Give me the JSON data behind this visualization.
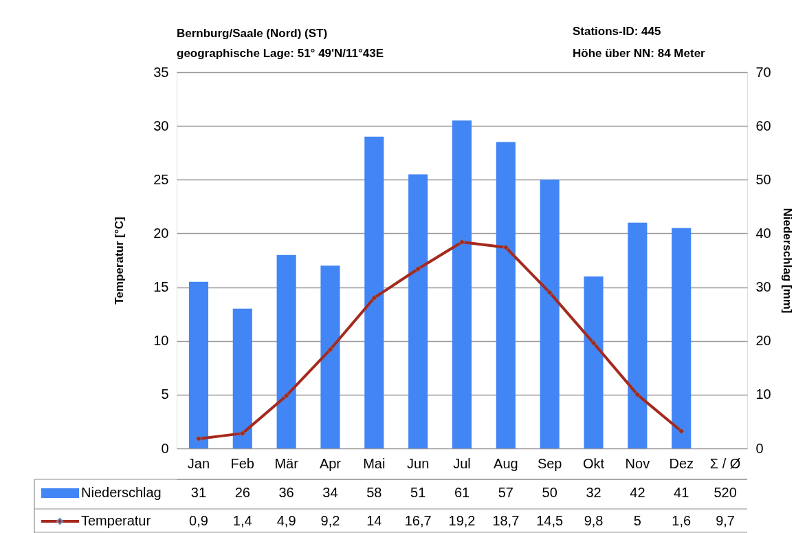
{
  "chart_data": {
    "type": "bar",
    "title": "Bernburg/Saale (Nord) (ST)",
    "subtitle": "geographische Lage: 51° 49'N/11°43E",
    "annotations": [
      "Stations-ID: 445",
      "Höhe über NN: 84 Meter"
    ],
    "ylabel": "Temperatur [°C]",
    "y2label": "Niederschlag [mm]",
    "categories": [
      "Jan",
      "Feb",
      "Mär",
      "Apr",
      "Mai",
      "Jun",
      "Jul",
      "Aug",
      "Sep",
      "Okt",
      "Nov",
      "Dez",
      "Σ / Ø"
    ],
    "series": [
      {
        "name": "Niederschlag",
        "axis": "y2",
        "color": "#4285f4",
        "values": [
          31,
          26,
          36,
          34,
          58,
          51,
          61,
          57,
          50,
          32,
          42,
          41,
          null
        ],
        "value_labels": [
          "31",
          "26",
          "36",
          "34",
          "58",
          "51",
          "61",
          "57",
          "50",
          "32",
          "42",
          "41",
          "520"
        ]
      },
      {
        "name": "Temperatur",
        "type": "line",
        "color": "#a52a1e",
        "values": [
          0.9,
          1.4,
          4.9,
          9.2,
          14,
          16.7,
          19.2,
          18.7,
          14.5,
          9.8,
          5,
          1.6,
          null
        ],
        "value_labels": [
          "0,9",
          "1,4",
          "4,9",
          "9,2",
          "14",
          "16,7",
          "19,2",
          "18,7",
          "14,5",
          "9,8",
          "5",
          "1,6",
          "9,7"
        ]
      }
    ],
    "ylim": [
      0,
      35
    ],
    "yticks": [
      0,
      5,
      10,
      15,
      20,
      25,
      30,
      35
    ],
    "y2lim": [
      0,
      70
    ],
    "y2ticks": [
      0,
      10,
      20,
      30,
      40,
      50,
      60,
      70
    ],
    "grid": "y",
    "legend": "bottom left",
    "marker": "diamond",
    "line_style": "solid"
  }
}
